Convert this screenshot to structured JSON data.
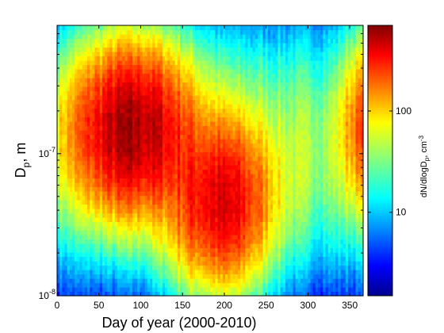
{
  "chart_data": {
    "type": "heatmap",
    "title": "",
    "xlabel": "Day of year (2000-2010)",
    "ylabel_main": "D",
    "ylabel_sub": "p",
    "ylabel_tail": ", m",
    "xlim": [
      0,
      366
    ],
    "ylim": [
      1e-08,
      8e-07
    ],
    "yscale": "log",
    "x_ticks": [
      0,
      50,
      100,
      150,
      200,
      250,
      300,
      350
    ],
    "y_ticks": [
      {
        "value": 1e-08,
        "base": "10",
        "exp": "-8"
      },
      {
        "value": 1e-07,
        "base": "10",
        "exp": "-7"
      }
    ],
    "colorbar": {
      "scale": "log",
      "range": [
        1.5,
        700
      ],
      "ticks": [
        {
          "value": 10,
          "label": "10"
        },
        {
          "value": 100,
          "label": "100"
        }
      ],
      "label_main": "dN/dlogD",
      "label_sub": "p",
      "label_mid": ", cm",
      "label_sup": "-3",
      "colormap": "jet"
    },
    "modes": [
      {
        "day_center": 90,
        "day_width": 40,
        "diameter_center_m": 1.5e-07,
        "peak": 500
      },
      {
        "day_center": 195,
        "day_width": 35,
        "diameter_center_m": 4.5e-08,
        "peak": 350
      },
      {
        "day_center": 365,
        "day_width": 15,
        "diameter_center_m": 1.6e-07,
        "peak": 150
      }
    ],
    "grid": false,
    "legend": "none"
  }
}
